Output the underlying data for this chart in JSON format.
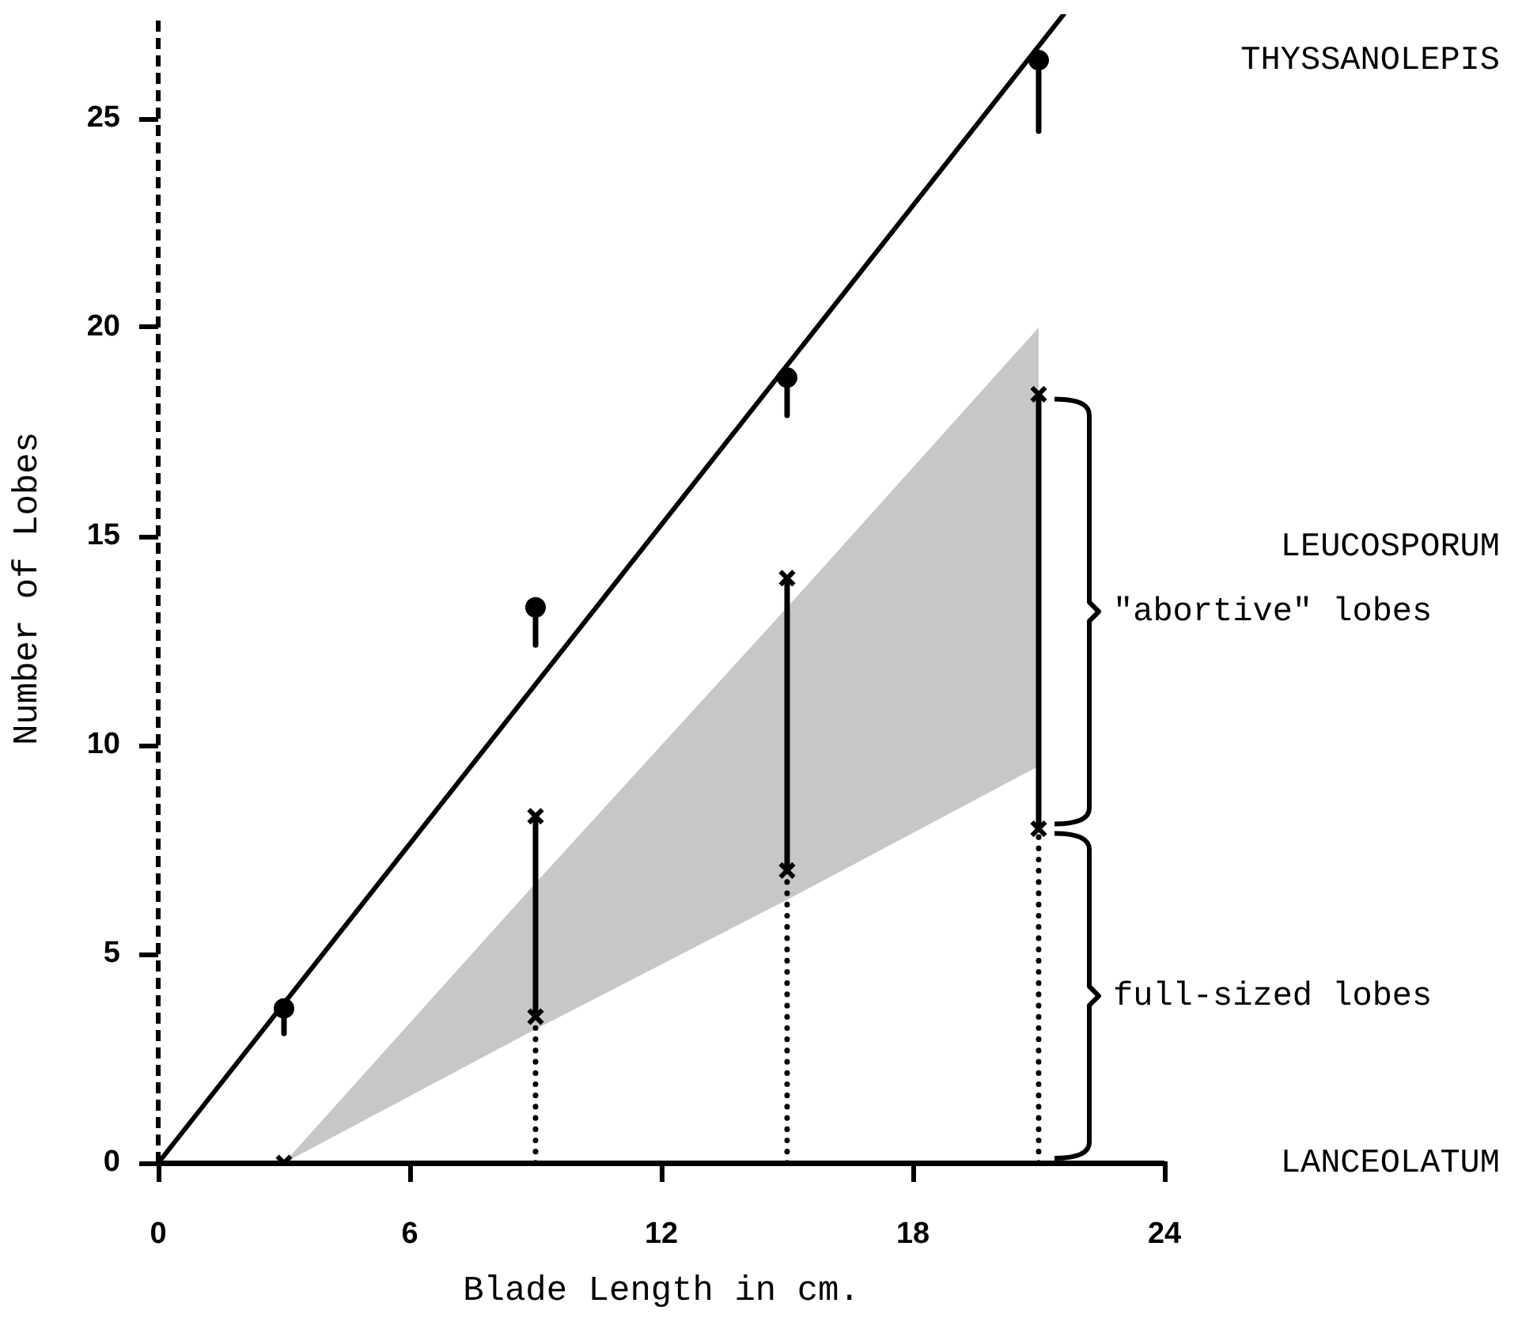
{
  "chart_data": {
    "type": "scatter",
    "xlabel": "Blade Length in cm.",
    "ylabel": "Number of Lobes",
    "xlim": [
      0,
      24
    ],
    "xticks": [
      0,
      6,
      12,
      18,
      24
    ],
    "ylim": [
      0,
      27.5
    ],
    "yticks": [
      0,
      5,
      10,
      15,
      20,
      25
    ],
    "series": [
      {
        "name": "LANCEOLATUM",
        "type": "line",
        "x": [
          0,
          24
        ],
        "values": [
          0,
          0
        ],
        "color": "#000000",
        "marker": "none"
      },
      {
        "type": "line",
        "x": [
          0,
          21.6
        ],
        "values": [
          0,
          27.5
        ],
        "color": "#000000",
        "marker": "none"
      },
      {
        "name": "THYSSANOLEPIS",
        "x": [
          3,
          9,
          15,
          21
        ],
        "values": [
          3.7,
          13.3,
          18.8,
          26.4
        ],
        "errors": [
          [
            3.1,
            3.7
          ],
          [
            12.4,
            13.3
          ],
          [
            17.9,
            18.8
          ],
          [
            24.7,
            26.4
          ]
        ],
        "color": "#000000",
        "marker": "circle"
      },
      {
        "x": [
          9,
          15,
          21
        ],
        "values": [
          3.5,
          7,
          8
        ],
        "errors": [
          [
            0,
            3.5
          ],
          [
            0,
            7
          ],
          [
            0,
            8
          ]
        ],
        "color": "#000000",
        "marker": "cross",
        "line_style": "dotted"
      },
      {
        "name": "LEUCOSPORUM",
        "x": [
          3,
          9,
          15,
          21
        ],
        "values": [
          0,
          8.3,
          14,
          18.4
        ],
        "errors": [
          null,
          [
            3.5,
            8.3
          ],
          [
            7,
            14
          ],
          [
            8,
            18.4
          ]
        ],
        "lower": [
          0,
          3.2,
          6.3,
          9.5
        ],
        "upper": [
          0,
          6.7,
          13.3,
          20
        ],
        "color": "#000000",
        "marker": "cross"
      }
    ],
    "annotations": [
      "\"abortive\" lobes",
      "full-sized lobes"
    ]
  }
}
